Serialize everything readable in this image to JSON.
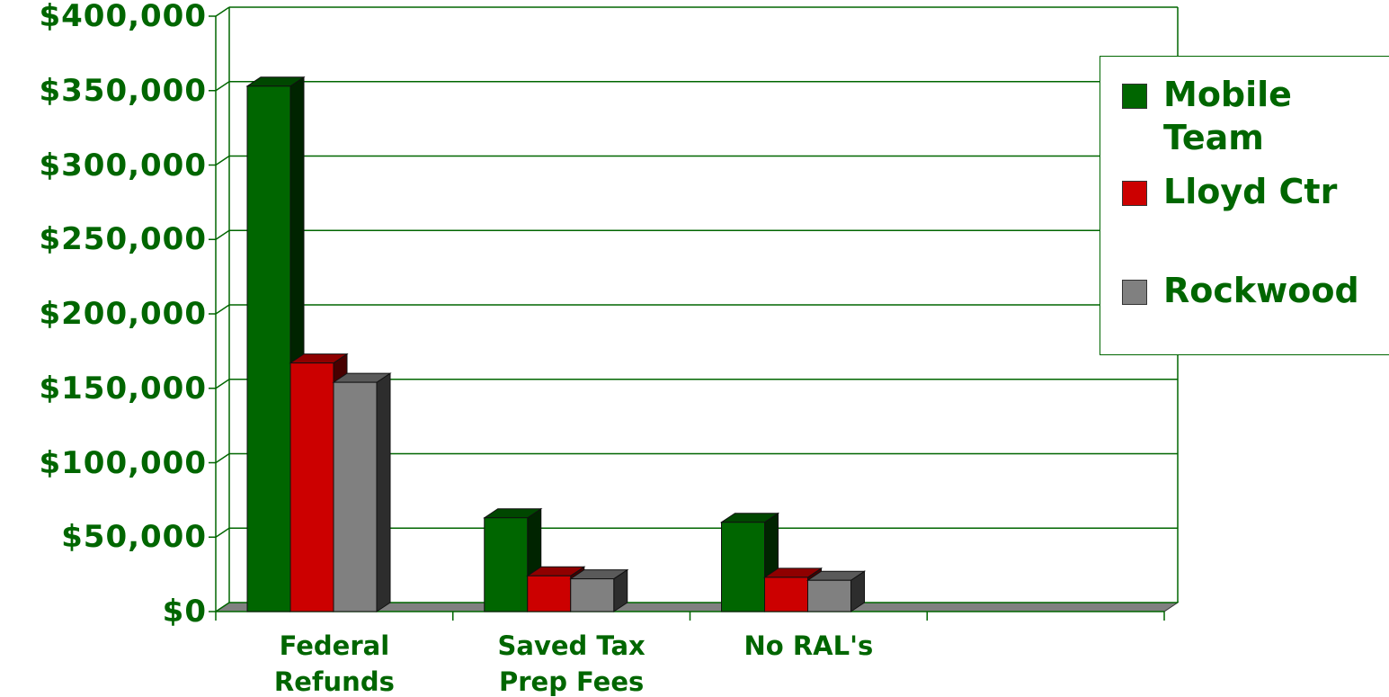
{
  "chart_data": {
    "type": "bar",
    "categories": [
      "Federal Refunds",
      "Saved Tax Prep Fees",
      "No RAL's",
      null
    ],
    "series": [
      {
        "name": "Mobile Team",
        "color": "#006600",
        "values": [
          353000,
          63000,
          60000,
          null
        ]
      },
      {
        "name": "Lloyd Ctr",
        "color": "#cc0000",
        "values": [
          167000,
          24000,
          23000,
          null
        ]
      },
      {
        "name": "Rockwood",
        "color": "#808080",
        "values": [
          154000,
          22000,
          21000,
          null
        ]
      }
    ],
    "ylim": [
      0,
      400000
    ],
    "yticks": [
      {
        "value": 0,
        "label": "$0"
      },
      {
        "value": 50000,
        "label": "$50,000"
      },
      {
        "value": 100000,
        "label": "$100,000"
      },
      {
        "value": 150000,
        "label": "$150,000"
      },
      {
        "value": 200000,
        "label": "$200,000"
      },
      {
        "value": 250000,
        "label": "$250,000"
      },
      {
        "value": 300000,
        "label": "$300,000"
      },
      {
        "value": 350000,
        "label": "$350,000"
      },
      {
        "value": 400000,
        "label": "$400,000"
      }
    ],
    "grid": true,
    "legend": "right"
  }
}
